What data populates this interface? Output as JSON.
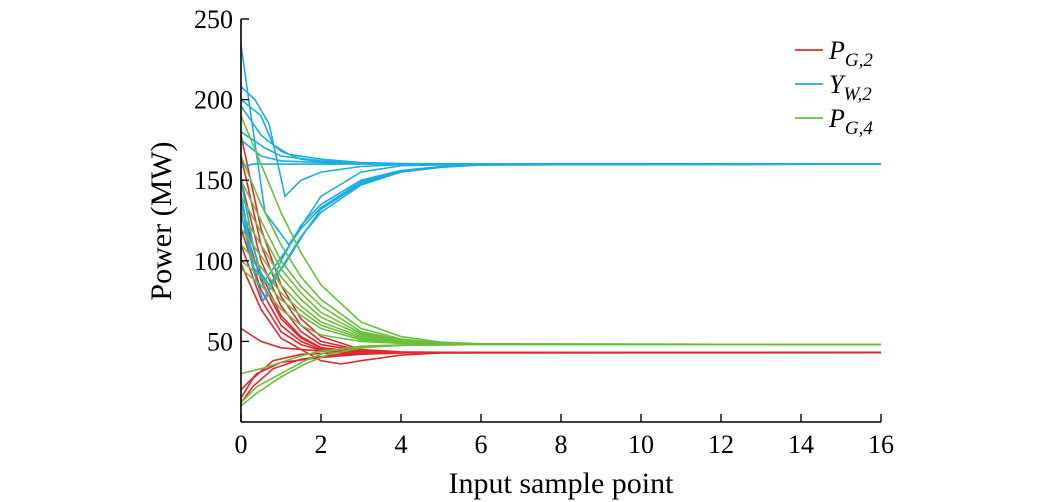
{
  "chart_data": {
    "type": "line",
    "xlabel": "Input sample point",
    "ylabel": "Power (MW)",
    "xlim": [
      0,
      16
    ],
    "ylim": [
      0,
      250
    ],
    "xticks": [
      0,
      2,
      4,
      6,
      8,
      10,
      12,
      14,
      16
    ],
    "yticks": [
      50,
      100,
      150,
      200,
      250
    ],
    "legend_position": "top-right",
    "series": [
      {
        "name": "P_{G,2}",
        "label_main": "P",
        "label_sub": "G,2",
        "color": "#e0282e",
        "steady": 43,
        "curves": [
          {
            "x": [
              0,
              0.5,
              1,
              1.5,
              2,
              3,
              4,
              6,
              16
            ],
            "y": [
              178,
              120,
              85,
              64,
              53,
              45,
              43.5,
              43,
              43
            ]
          },
          {
            "x": [
              0,
              0.5,
              1,
              1.5,
              2,
              3,
              4,
              6,
              16
            ],
            "y": [
              165,
              110,
              78,
              60,
              50,
              44.5,
              43.3,
              43,
              43
            ]
          },
          {
            "x": [
              0,
              0.5,
              1,
              1.5,
              2,
              3,
              4,
              6,
              16
            ],
            "y": [
              150,
              100,
              72,
              56,
              48,
              44,
              43.2,
              43,
              43
            ]
          },
          {
            "x": [
              0,
              0.5,
              1,
              1.5,
              2,
              3,
              4,
              6,
              16
            ],
            "y": [
              135,
              92,
              66,
              53,
              46,
              43.7,
              43.1,
              43,
              43
            ]
          },
          {
            "x": [
              0,
              0.5,
              1,
              1.5,
              2,
              3,
              4,
              6,
              16
            ],
            "y": [
              128,
              88,
              64,
              52,
              46,
              43.5,
              43.1,
              43,
              43
            ]
          },
          {
            "x": [
              0,
              0.5,
              1,
              1.5,
              2,
              3,
              4,
              6,
              16
            ],
            "y": [
              120,
              82,
              60,
              50,
              45,
              43.4,
              43,
              43,
              43
            ]
          },
          {
            "x": [
              0,
              0.5,
              1,
              1.5,
              2,
              3,
              4,
              6,
              16
            ],
            "y": [
              110,
              76,
              56,
              48,
              44.5,
              43.3,
              43,
              43,
              43
            ]
          },
          {
            "x": [
              0,
              0.5,
              1,
              2,
              2.5,
              3,
              4,
              5,
              16
            ],
            "y": [
              98,
              70,
              52,
              38,
              36,
              38,
              41.5,
              42.8,
              43
            ]
          },
          {
            "x": [
              0,
              0.5,
              1,
              2,
              3,
              4,
              6,
              16
            ],
            "y": [
              58,
              50,
              46,
              44,
              43.3,
              43.1,
              43,
              43
            ]
          },
          {
            "x": [
              0,
              0.3,
              0.8,
              1.5,
              2.5,
              4,
              6,
              16
            ],
            "y": [
              15,
              27,
              38,
              42,
              43,
              43,
              43,
              43
            ]
          },
          {
            "x": [
              0,
              0.4,
              1,
              2,
              3,
              4,
              6,
              16
            ],
            "y": [
              20,
              30,
              37,
              40,
              42,
              42.8,
              43,
              43
            ]
          },
          {
            "x": [
              0,
              0.3,
              0.8,
              1.5,
              2.5,
              4,
              6,
              16
            ],
            "y": [
              12,
              22,
              33,
              39,
              42,
              42.9,
              43,
              43
            ]
          }
        ]
      },
      {
        "name": "Y_{W,2}",
        "label_main": "Y",
        "label_sub": "W,2",
        "color": "#1aaee0",
        "steady": 160,
        "curves": [
          {
            "x": [
              0,
              0.25,
              0.6,
              1.2,
              2,
              3,
              4,
              6,
              16
            ],
            "y": [
              234,
              190,
              130,
              110,
              140,
              155,
              159,
              160,
              160
            ]
          },
          {
            "x": [
              0,
              0.35,
              0.7,
              1.1,
              1.5,
              2,
              3,
              4,
              6,
              16
            ],
            "y": [
              208,
              200,
              185,
              140,
              150,
              155,
              158.5,
              159.7,
              160,
              160
            ]
          },
          {
            "x": [
              0,
              0.5,
              0.8,
              1.2,
              2,
              3,
              4,
              6,
              16
            ],
            "y": [
              200,
              190,
              172,
              166,
              163,
              161,
              160.3,
              160,
              160
            ]
          },
          {
            "x": [
              0,
              0.5,
              1,
              1.5,
              2,
              3,
              4,
              6,
              16
            ],
            "y": [
              196,
              178,
              168,
              163,
              161.5,
              160.5,
              160.1,
              160,
              160
            ]
          },
          {
            "x": [
              0,
              0.6,
              1,
              2,
              3,
              4,
              6,
              16
            ],
            "y": [
              180,
              170,
              165,
              162,
              160.7,
              160.2,
              160,
              160
            ]
          },
          {
            "x": [
              0,
              0.5,
              1,
              2,
              3,
              4,
              6,
              16
            ],
            "y": [
              175,
              165,
              162,
              161,
              160.4,
              160.1,
              160,
              160
            ]
          },
          {
            "x": [
              0,
              0.3,
              0.6,
              1,
              2,
              3,
              4,
              6,
              16
            ],
            "y": [
              158,
              160,
              160,
              160,
              160,
              160,
              160,
              160,
              160
            ]
          },
          {
            "x": [
              0,
              0.3,
              0.65,
              1,
              1.5,
              2,
              3,
              4,
              5,
              6,
              16
            ],
            "y": [
              150,
              110,
              78,
              100,
              122,
              135,
              150,
              156,
              158.5,
              159.5,
              160
            ]
          },
          {
            "x": [
              0,
              0.3,
              0.7,
              1.1,
              1.6,
              2,
              3,
              4,
              5,
              6,
              16
            ],
            "y": [
              142,
              100,
              85,
              98,
              118,
              132,
              148,
              155,
              158,
              159.5,
              160
            ]
          },
          {
            "x": [
              0,
              0.3,
              0.6,
              1,
              1.5,
              2,
              3,
              4,
              5,
              6,
              16
            ],
            "y": [
              138,
              96,
              88,
              102,
              120,
              133,
              149,
              155.5,
              158.3,
              159.6,
              160
            ]
          },
          {
            "x": [
              0,
              0.3,
              0.55,
              1,
              1.5,
              2,
              3,
              4,
              5,
              6,
              16
            ],
            "y": [
              130,
              95,
              75,
              95,
              115,
              130,
              147,
              155,
              158.2,
              159.5,
              160
            ]
          }
        ]
      },
      {
        "name": "P_{G,4}",
        "label_main": "P",
        "label_sub": "G,4",
        "color": "#6abf3c",
        "steady": 48,
        "curves": [
          {
            "x": [
              0,
              0.5,
              1,
              1.5,
              2,
              3,
              4,
              5,
              6,
              16
            ],
            "y": [
              190,
              160,
              130,
              105,
              85,
              62,
              53,
              49.5,
              48.5,
              48
            ]
          },
          {
            "x": [
              0,
              0.5,
              1,
              1.5,
              2,
              3,
              4,
              5,
              6,
              16
            ],
            "y": [
              165,
              135,
              110,
              90,
              76,
              58,
              51.5,
              49,
              48.3,
              48
            ]
          },
          {
            "x": [
              0,
              0.5,
              1,
              1.5,
              2,
              3,
              4,
              5,
              6,
              16
            ],
            "y": [
              150,
              125,
              100,
              84,
              72,
              56,
              51,
              49,
              48.3,
              48
            ]
          },
          {
            "x": [
              0,
              0.5,
              1,
              1.5,
              2,
              3,
              4,
              5,
              6,
              16
            ],
            "y": [
              140,
              118,
              95,
              80,
              68,
              55,
              50.5,
              48.8,
              48.2,
              48
            ]
          },
          {
            "x": [
              0,
              0.5,
              1,
              1.5,
              2,
              3,
              4,
              5,
              6,
              16
            ],
            "y": [
              130,
              110,
              90,
              76,
              65,
              54,
              50,
              48.7,
              48.2,
              48
            ]
          },
          {
            "x": [
              0,
              0.5,
              1,
              1.5,
              2,
              3,
              4,
              5,
              6,
              16
            ],
            "y": [
              120,
              103,
              85,
              72,
              62,
              53,
              49.8,
              48.6,
              48.1,
              48
            ]
          },
          {
            "x": [
              0,
              0.5,
              1,
              1.5,
              2,
              3,
              4,
              5,
              6,
              16
            ],
            "y": [
              110,
              96,
              80,
              69,
              60,
              52,
              49.5,
              48.5,
              48.1,
              48
            ]
          },
          {
            "x": [
              0,
              0.5,
              1,
              1.5,
              2,
              3,
              4,
              5,
              6,
              16
            ],
            "y": [
              100,
              90,
              76,
              66,
              58,
              51,
              49.3,
              48.4,
              48,
              48
            ]
          },
          {
            "x": [
              0,
              0.5,
              1,
              1.5,
              2,
              3,
              4,
              6,
              16
            ],
            "y": [
              95,
              85,
              70,
              60,
              54,
              50,
              48.8,
              48,
              48
            ]
          },
          {
            "x": [
              0,
              0.4,
              1,
              1.6,
              2.2,
              3,
              4,
              6,
              16
            ],
            "y": [
              12,
              22,
              30,
              38,
              44,
              47,
              47.8,
              48,
              48
            ]
          },
          {
            "x": [
              0,
              0.4,
              1,
              1.6,
              2.2,
              3,
              4,
              6,
              16
            ],
            "y": [
              10,
              18,
              28,
              36,
              42,
              46,
              47.6,
              48,
              48
            ]
          },
          {
            "x": [
              0,
              0.5,
              1,
              1.5,
              2,
              3,
              4,
              6,
              16
            ],
            "y": [
              30,
              33,
              37,
              41,
              44,
              46.5,
              47.6,
              48,
              48
            ]
          }
        ]
      }
    ]
  }
}
